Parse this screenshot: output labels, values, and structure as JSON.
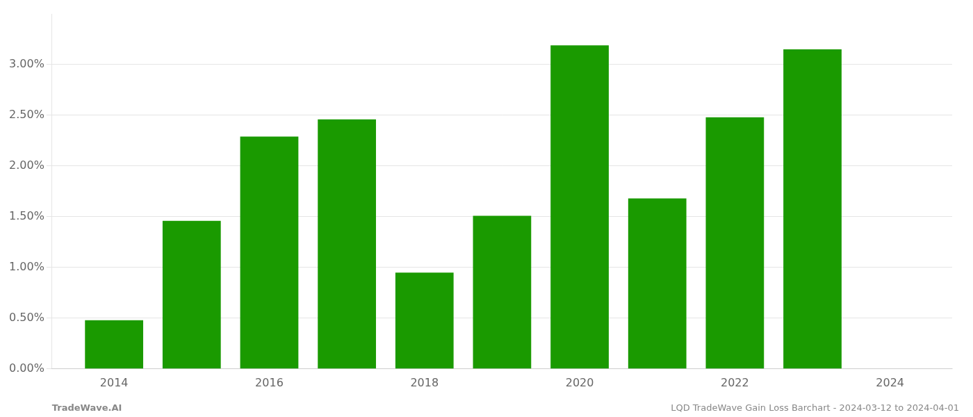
{
  "chart_data": {
    "type": "bar",
    "x": [
      2014,
      2015,
      2016,
      2017,
      2018,
      2019,
      2020,
      2021,
      2022,
      2023
    ],
    "values": [
      0.0048,
      0.0146,
      0.0229,
      0.0246,
      0.0095,
      0.0151,
      0.0319,
      0.0168,
      0.0248,
      0.0315
    ],
    "color": "#1a9a00",
    "xlim": [
      2013.2,
      2024.8
    ],
    "xticks": [
      2014,
      2016,
      2018,
      2020,
      2022,
      2024
    ],
    "ylim": [
      0.0,
      0.035
    ],
    "yticks": [
      {
        "value": 0.0,
        "label": "0.00%"
      },
      {
        "value": 0.005,
        "label": "0.50%"
      },
      {
        "value": 0.01,
        "label": "1.00%"
      },
      {
        "value": 0.015,
        "label": "1.50%"
      },
      {
        "value": 0.02,
        "label": "2.00%"
      },
      {
        "value": 0.025,
        "label": "2.50%"
      },
      {
        "value": 0.03,
        "label": "3.00%"
      }
    ],
    "grid": "y",
    "annotations": [
      "TradeWave.AI",
      "LQD TradeWave Gain Loss Barchart - 2024-03-12 to 2024-04-01"
    ]
  }
}
